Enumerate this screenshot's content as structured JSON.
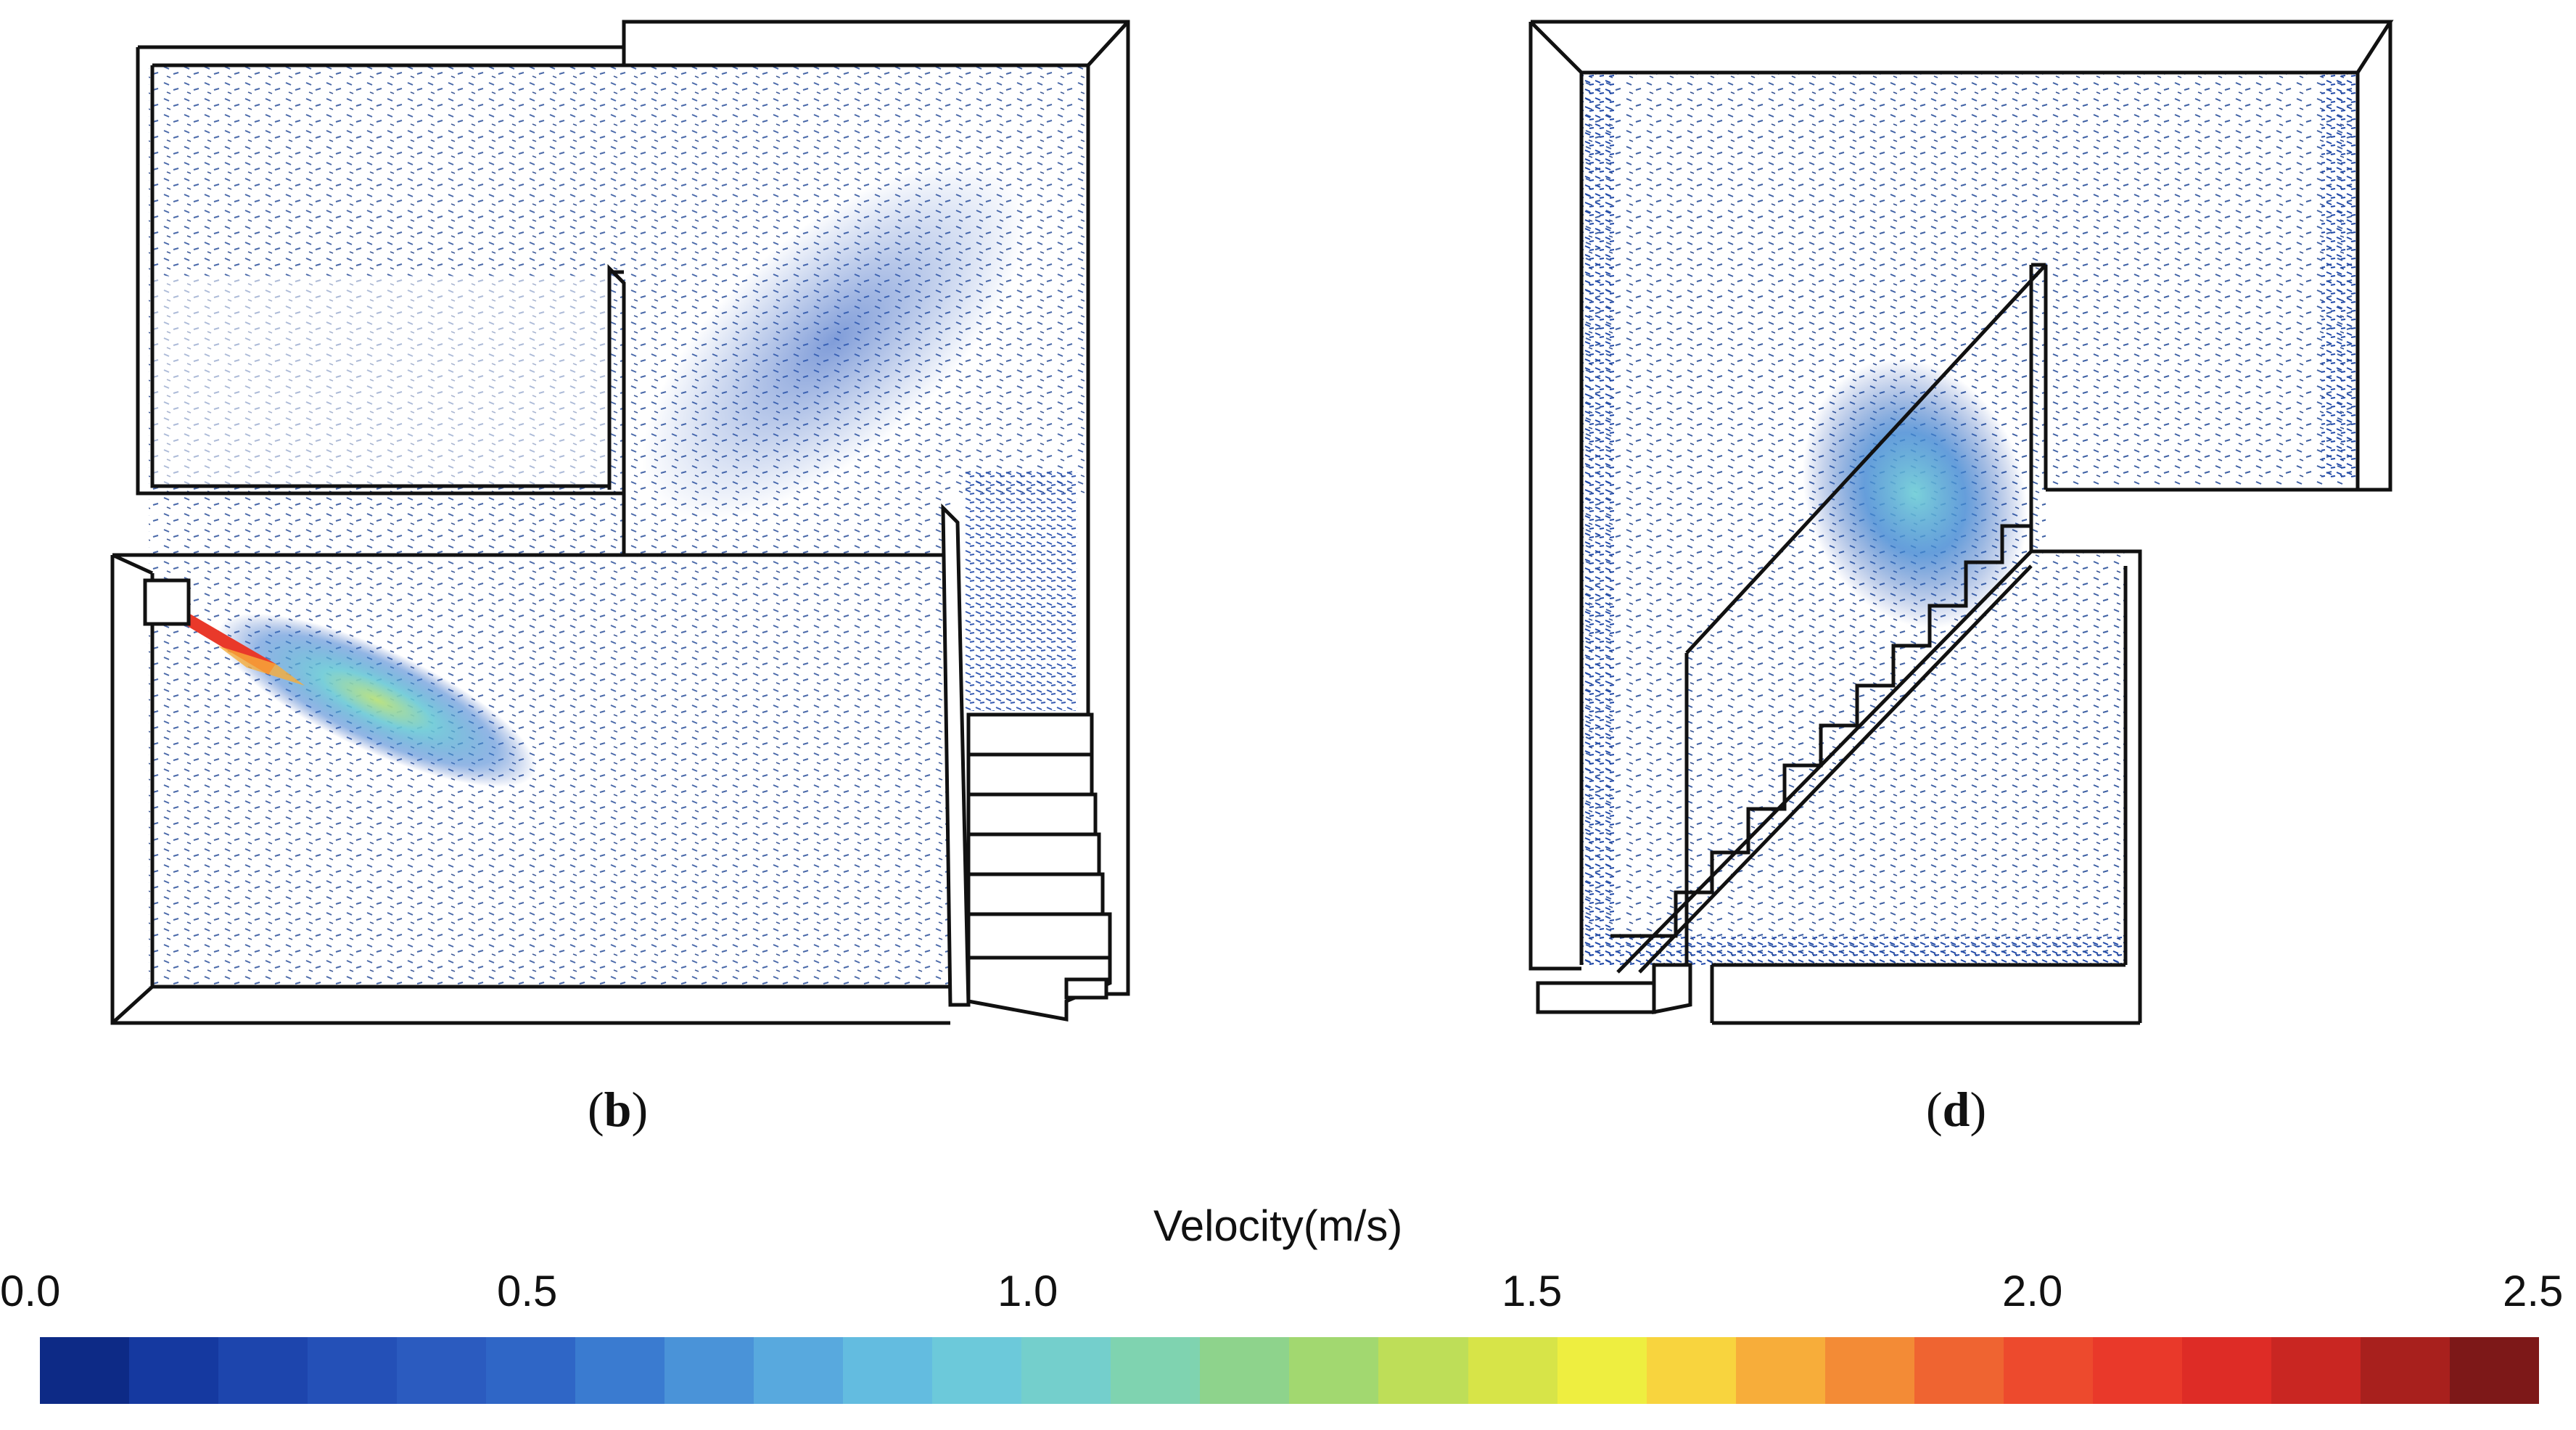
{
  "panels": [
    {
      "id": "b",
      "label_open": "(",
      "label_letter": "b",
      "label_close": ")"
    },
    {
      "id": "d",
      "label_open": "(",
      "label_letter": "d",
      "label_close": ")"
    }
  ],
  "colorbar": {
    "title": "Velocity(m/s)",
    "min": 0.0,
    "max": 2.5,
    "ticks": [
      "0.0",
      "0.5",
      "1.0",
      "1.5",
      "2.0",
      "2.5"
    ],
    "colors": [
      "#0d2a86",
      "#1539a0",
      "#1d45ad",
      "#2450b7",
      "#2b5bbf",
      "#2f66c6",
      "#3a7bd0",
      "#4a93d8",
      "#58a9de",
      "#63bce0",
      "#6cc9da",
      "#74cfcc",
      "#7fd3b0",
      "#8ed38c",
      "#a2d870",
      "#bede58",
      "#d7e448",
      "#eeee40",
      "#f8d43e",
      "#f7ad3a",
      "#f38b36",
      "#ef6431",
      "#ed4a2d",
      "#e9392a",
      "#de2c26",
      "#c92622",
      "#a8201d",
      "#7d1818"
    ]
  }
}
